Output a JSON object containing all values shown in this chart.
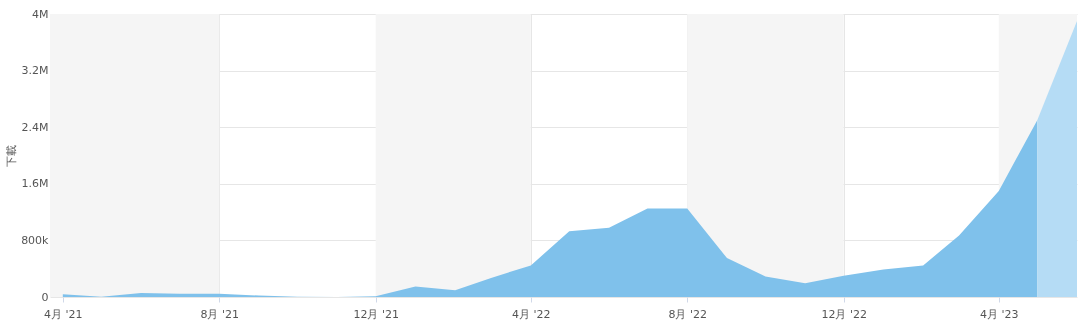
{
  "chart_data": {
    "type": "area",
    "ylabel": "下載",
    "x": [
      "2021-04",
      "2021-05",
      "2021-06",
      "2021-07",
      "2021-08",
      "2021-09",
      "2021-10",
      "2021-11",
      "2021-12",
      "2022-01",
      "2022-02",
      "2022-03",
      "2022-04",
      "2022-05",
      "2022-06",
      "2022-07",
      "2022-08",
      "2022-09",
      "2022-10",
      "2022-11",
      "2022-12",
      "2023-01",
      "2023-02",
      "2023-03",
      "2023-04",
      "2023-05",
      "2023-06"
    ],
    "series": [
      {
        "color": "#7fc1eb",
        "values": [
          40000,
          5000,
          55000,
          45000,
          45000,
          20000,
          5000,
          0,
          10000,
          150000,
          95000,
          270000,
          445000,
          930000,
          980000,
          1250000,
          1250000,
          550000,
          290000,
          195000,
          300000,
          390000,
          445000,
          870000,
          1500000,
          2500000,
          null
        ]
      },
      {
        "color": "#b5dcf5",
        "values": [
          null,
          null,
          null,
          null,
          null,
          null,
          null,
          null,
          null,
          null,
          null,
          null,
          null,
          null,
          null,
          null,
          null,
          null,
          null,
          null,
          null,
          null,
          null,
          null,
          null,
          2500000,
          3900000
        ]
      }
    ],
    "xlim": [
      "2021-03-22",
      "2023-06-01"
    ],
    "xticks": [
      {
        "value": "2021-04",
        "label": "4月 '21"
      },
      {
        "value": "2021-08",
        "label": "8月 '21"
      },
      {
        "value": "2021-12",
        "label": "12月 '21"
      },
      {
        "value": "2022-04",
        "label": "4月 '22"
      },
      {
        "value": "2022-08",
        "label": "8月 '22"
      },
      {
        "value": "2022-12",
        "label": "12月 '22"
      },
      {
        "value": "2023-04",
        "label": "4月 '23"
      }
    ],
    "ylim": [
      0,
      4000000
    ],
    "yticks": [
      0,
      {
        "value": 800000,
        "label": "800k"
      },
      {
        "value": 1600000,
        "label": "1.6M"
      },
      {
        "value": 2400000,
        "label": "2.4M"
      },
      {
        "value": 3200000,
        "label": "3.2M"
      },
      {
        "value": 4000000,
        "label": "4M"
      }
    ],
    "bands": [
      {
        "axis": "x",
        "from": "2021-03-22",
        "to": "2021-08",
        "label": null,
        "color": "#f5f5f5"
      },
      {
        "axis": "x",
        "from": "2021-12",
        "to": "2022-04",
        "label": null,
        "color": "#f5f5f5"
      },
      {
        "axis": "x",
        "from": "2022-08",
        "to": "2022-12",
        "label": null,
        "color": "#f5f5f5"
      },
      {
        "axis": "x",
        "from": "2023-04",
        "to": "2023-06-01",
        "label": null,
        "color": "#f5f5f5"
      }
    ],
    "grid": true,
    "legend": false
  }
}
